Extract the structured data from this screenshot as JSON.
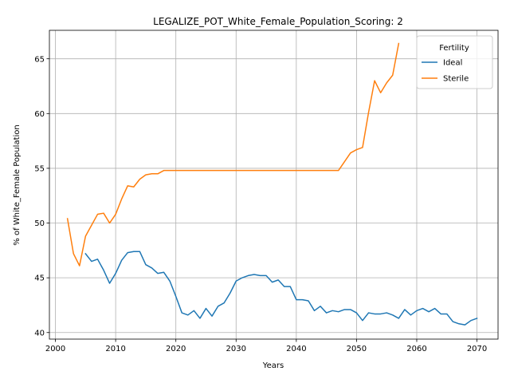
{
  "chart_data": {
    "type": "line",
    "title": "LEGALIZE_POT_White_Female_Population_Scoring: 2",
    "xlabel": "Years",
    "ylabel": "% of White_Female Population",
    "xlim": [
      1999,
      2073.5
    ],
    "ylim": [
      39.4,
      67.6
    ],
    "xticks": [
      2000,
      2010,
      2020,
      2030,
      2040,
      2050,
      2060,
      2070
    ],
    "yticks": [
      40,
      45,
      50,
      55,
      60,
      65
    ],
    "grid": true,
    "legend": {
      "title": "Fertility",
      "position": "top-right"
    },
    "series": [
      {
        "name": "Ideal",
        "color": "#1f77b4",
        "x": [
          2005,
          2006,
          2007,
          2008,
          2009,
          2010,
          2011,
          2012,
          2013,
          2014,
          2015,
          2016,
          2017,
          2018,
          2019,
          2020,
          2021,
          2022,
          2023,
          2024,
          2025,
          2026,
          2027,
          2028,
          2029,
          2030,
          2031,
          2032,
          2033,
          2034,
          2035,
          2036,
          2037,
          2038,
          2039,
          2040,
          2041,
          2042,
          2043,
          2044,
          2045,
          2046,
          2047,
          2048,
          2049,
          2050,
          2051,
          2052,
          2053,
          2054,
          2055,
          2056,
          2057,
          2058,
          2059,
          2060,
          2061,
          2062,
          2063,
          2064,
          2065,
          2066,
          2067,
          2068,
          2069,
          2070
        ],
        "y": [
          47.2,
          46.5,
          46.7,
          45.7,
          44.5,
          45.4,
          46.6,
          47.3,
          47.4,
          47.4,
          46.2,
          45.9,
          45.4,
          45.5,
          44.7,
          43.3,
          41.8,
          41.6,
          42.0,
          41.3,
          42.2,
          41.5,
          42.4,
          42.7,
          43.6,
          44.7,
          45.0,
          45.2,
          45.3,
          45.2,
          45.2,
          44.6,
          44.8,
          44.2,
          44.2,
          43.0,
          43.0,
          42.9,
          42.0,
          42.4,
          41.8,
          42.0,
          41.9,
          42.1,
          42.1,
          41.8,
          41.1,
          41.8,
          41.7,
          41.7,
          41.8,
          41.6,
          41.3,
          42.1,
          41.6,
          42.0,
          42.2,
          41.9,
          42.2,
          41.7,
          41.7,
          41.0,
          40.8,
          40.7,
          41.1,
          41.3
        ]
      },
      {
        "name": "Sterile",
        "color": "#ff7f0e",
        "x": [
          2002,
          2003,
          2004,
          2005,
          2006,
          2007,
          2008,
          2009,
          2010,
          2011,
          2012,
          2013,
          2014,
          2015,
          2016,
          2017,
          2018,
          2019,
          2020,
          2021,
          2022,
          2023,
          2024,
          2025,
          2026,
          2027,
          2028,
          2029,
          2030,
          2031,
          2032,
          2033,
          2034,
          2035,
          2036,
          2037,
          2038,
          2039,
          2040,
          2041,
          2042,
          2043,
          2044,
          2045,
          2046,
          2047,
          2048,
          2049,
          2050,
          2051,
          2052,
          2053,
          2054,
          2055,
          2056,
          2057
        ],
        "y": [
          50.4,
          47.2,
          46.1,
          48.8,
          49.8,
          50.8,
          50.9,
          50.0,
          50.8,
          52.2,
          53.4,
          53.3,
          54.0,
          54.4,
          54.5,
          54.5,
          54.8,
          54.8,
          54.8,
          54.8,
          54.8,
          54.8,
          54.8,
          54.8,
          54.8,
          54.8,
          54.8,
          54.8,
          54.8,
          54.8,
          54.8,
          54.8,
          54.8,
          54.8,
          54.8,
          54.8,
          54.8,
          54.8,
          54.8,
          54.8,
          54.8,
          54.8,
          54.8,
          54.8,
          54.8,
          54.8,
          55.6,
          56.4,
          56.7,
          56.9,
          60.1,
          63.0,
          61.9,
          62.8,
          63.5,
          66.4
        ]
      }
    ]
  }
}
